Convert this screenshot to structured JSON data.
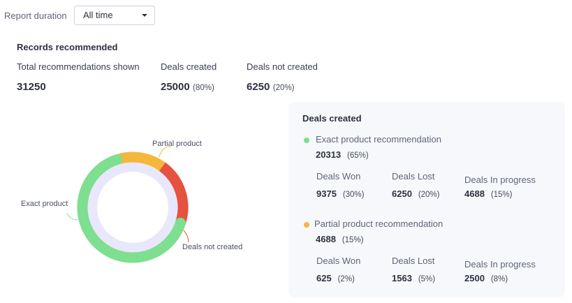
{
  "filter": {
    "label": "Report duration",
    "value": "All time"
  },
  "summary": {
    "title": "Records recommended",
    "total": {
      "label": "Total recommendations shown",
      "value": "31250"
    },
    "created": {
      "label": "Deals created",
      "value": "25000",
      "pct": "(80%)"
    },
    "not_created": {
      "label": "Deals not created",
      "value": "6250",
      "pct": "(20%)"
    }
  },
  "chart_data": {
    "type": "pie",
    "variant": "donut",
    "categories": [
      "Exact product",
      "Partial product",
      "Deals not created"
    ],
    "values": [
      20313,
      4688,
      6250
    ],
    "colors": [
      "#7ddf8f",
      "#f5b73b",
      "#e5523d"
    ],
    "track_color": "#e9e7fb"
  },
  "panel": {
    "title": "Deals created",
    "groups": [
      {
        "label": "Exact product recommendation",
        "value": "20313",
        "pct": "(65%)",
        "color": "#7ddf8f",
        "stats": [
          {
            "label": "Deals Won",
            "value": "9375",
            "pct": "(30%)"
          },
          {
            "label": "Deals Lost",
            "value": "6250",
            "pct": "(20%)"
          },
          {
            "label": "Deals In progress",
            "value": "4688",
            "pct": "(15%)"
          }
        ]
      },
      {
        "label": "Partial product recommendation",
        "value": "4688",
        "pct": "(15%)",
        "color": "#f5b73b",
        "stats": [
          {
            "label": "Deals Won",
            "value": "625",
            "pct": "(2%)"
          },
          {
            "label": "Deals Lost",
            "value": "1563",
            "pct": "(5%)"
          },
          {
            "label": "Deals In progress",
            "value": "2500",
            "pct": "(8%)"
          }
        ]
      }
    ]
  }
}
